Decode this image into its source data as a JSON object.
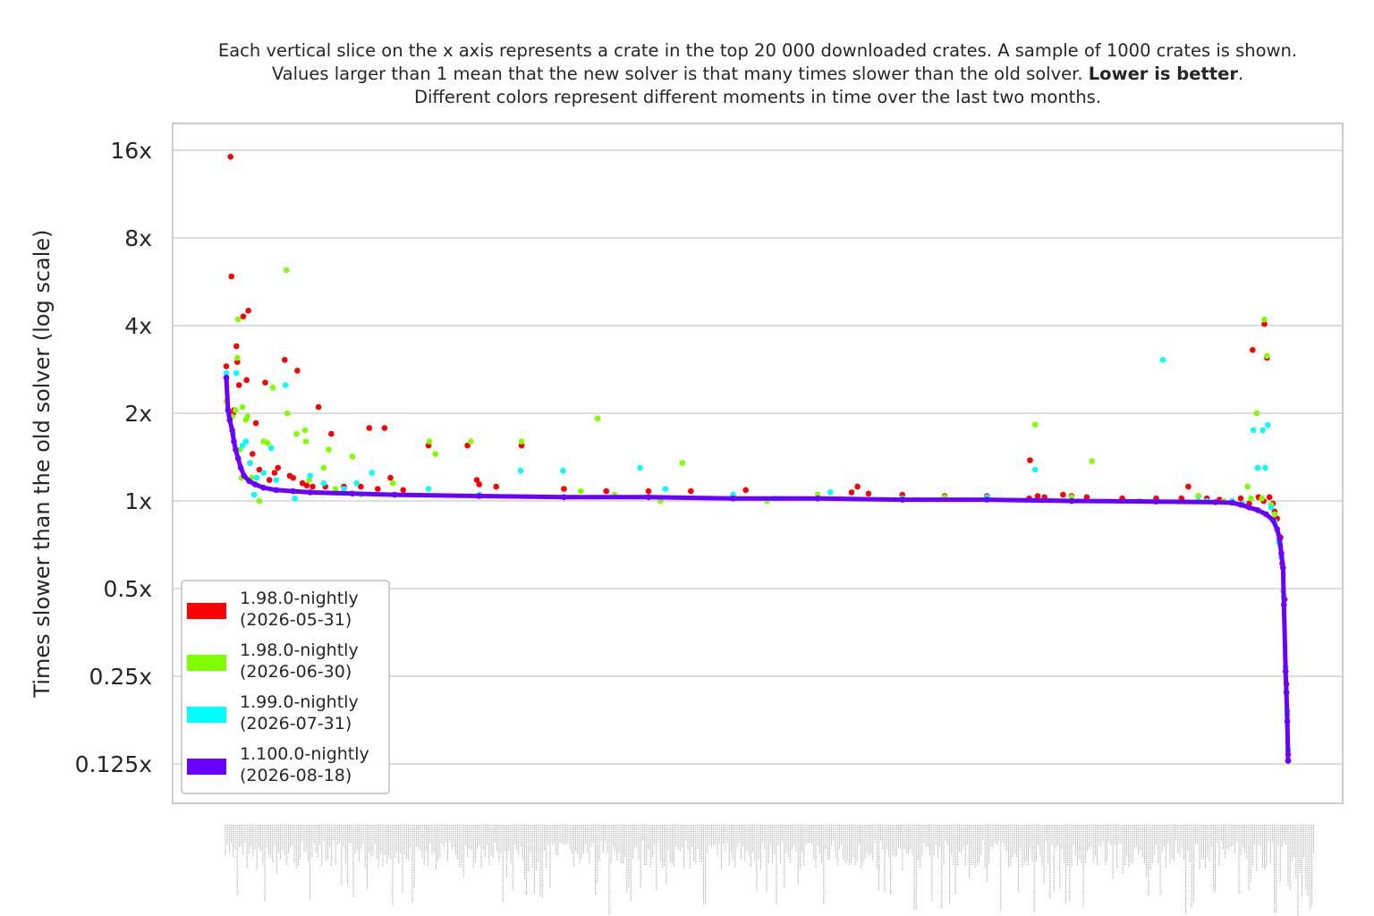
{
  "chart_data": {
    "type": "scatter",
    "subtitle_lines": [
      "Each vertical slice on the x axis represents a crate in the top 20 000 downloaded crates. A sample of 1000 crates is shown.",
      {
        "before": "Values larger than 1 mean that the new solver is that many times slower than the old solver. ",
        "bold": "Lower is better",
        "after": "."
      },
      "Different colors represent different moments in time over the last two months."
    ],
    "ylabel": "Times slower than the old solver (log scale)",
    "xlabel": "",
    "y_scale": "log2",
    "ylim": [
      0.105,
      19
    ],
    "y_ticks": [
      {
        "value": 16,
        "label": "16x"
      },
      {
        "value": 8,
        "label": "8x"
      },
      {
        "value": 4,
        "label": "4x"
      },
      {
        "value": 2,
        "label": "2x"
      },
      {
        "value": 1,
        "label": "1x"
      },
      {
        "value": 0.5,
        "label": "0.5x"
      },
      {
        "value": 0.25,
        "label": "0.25x"
      },
      {
        "value": 0.125,
        "label": "0.125x"
      }
    ],
    "grid": true,
    "legend_position": "lower-left",
    "x_tick_labels_note": "crate names, rotated and illegible",
    "x_count": 1000,
    "series": [
      {
        "name": "1.98.0-nightly\n(2026-05-31)",
        "color": "#ff0000",
        "points": [
          [
            1,
            2.9
          ],
          [
            6,
            15.2
          ],
          [
            7,
            5.9
          ],
          [
            9,
            2.0
          ],
          [
            10,
            2.05
          ],
          [
            13,
            3.4
          ],
          [
            14,
            3.0
          ],
          [
            16,
            2.5
          ],
          [
            21,
            4.3
          ],
          [
            25,
            2.6
          ],
          [
            27,
            4.5
          ],
          [
            29,
            1.35
          ],
          [
            32,
            1.45
          ],
          [
            36,
            1.85
          ],
          [
            40,
            1.28
          ],
          [
            47,
            2.55
          ],
          [
            52,
            1.18
          ],
          [
            58,
            1.25
          ],
          [
            62,
            1.3
          ],
          [
            70,
            3.05
          ],
          [
            76,
            1.22
          ],
          [
            80,
            1.2
          ],
          [
            85,
            2.8
          ],
          [
            91,
            1.15
          ],
          [
            96,
            1.13
          ],
          [
            103,
            1.12
          ],
          [
            110,
            2.1
          ],
          [
            118,
            1.12
          ],
          [
            125,
            1.7
          ],
          [
            140,
            1.12
          ],
          [
            160,
            1.12
          ],
          [
            170,
            1.78
          ],
          [
            180,
            1.1
          ],
          [
            188,
            1.78
          ],
          [
            195,
            1.2
          ],
          [
            210,
            1.09
          ],
          [
            240,
            1.55
          ],
          [
            286,
            1.55
          ],
          [
            297,
            1.18
          ],
          [
            300,
            1.14
          ],
          [
            320,
            1.12
          ],
          [
            350,
            1.55
          ],
          [
            400,
            1.1
          ],
          [
            450,
            1.08
          ],
          [
            500,
            1.08
          ],
          [
            550,
            1.08
          ],
          [
            615,
            1.09
          ],
          [
            740,
            1.07
          ],
          [
            747,
            1.12
          ],
          [
            760,
            1.06
          ],
          [
            800,
            1.05
          ],
          [
            850,
            1.04
          ],
          [
            900,
            1.04
          ],
          [
            950,
            1.02
          ],
          [
            951,
            1.38
          ],
          [
            960,
            1.04
          ],
          [
            968,
            1.03
          ],
          [
            990,
            1.05
          ],
          [
            1000,
            1.04
          ],
          [
            1018,
            1.03
          ],
          [
            1060,
            1.02
          ],
          [
            1100,
            1.02
          ],
          [
            1130,
            1.02
          ],
          [
            1138,
            1.12
          ],
          [
            1150,
            1.04
          ],
          [
            1160,
            1.02
          ],
          [
            1175,
            1.01
          ],
          [
            1190,
            1.0
          ],
          [
            1200,
            1.02
          ],
          [
            1210,
            0.98
          ],
          [
            1214,
            3.3
          ],
          [
            1221,
            1.03
          ],
          [
            1227,
            1.0
          ],
          [
            1228,
            4.05
          ],
          [
            1231,
            3.1
          ],
          [
            1234,
            1.03
          ],
          [
            1238,
            0.98
          ],
          [
            1240,
            0.92
          ],
          [
            1243,
            0.87
          ],
          [
            1247,
            0.75
          ],
          [
            1249,
            0.61
          ],
          [
            1252,
            0.46
          ],
          [
            1253,
            0.26
          ],
          [
            1254,
            0.235
          ],
          [
            1255,
            0.19
          ],
          [
            1256,
            0.135
          ]
        ]
      },
      {
        "name": "1.98.0-nightly\n(2026-06-30)",
        "color": "#7fff00",
        "points": [
          [
            1,
            2.2
          ],
          [
            8,
            1.95
          ],
          [
            12,
            2.05
          ],
          [
            14,
            3.1
          ],
          [
            15,
            4.2
          ],
          [
            17,
            1.5
          ],
          [
            19,
            1.2
          ],
          [
            20,
            2.1
          ],
          [
            24,
            1.9
          ],
          [
            26,
            1.95
          ],
          [
            31,
            1.2
          ],
          [
            40,
            1.0
          ],
          [
            45,
            1.6
          ],
          [
            50,
            1.58
          ],
          [
            56,
            2.45
          ],
          [
            72,
            6.2
          ],
          [
            73,
            2.0
          ],
          [
            84,
            1.7
          ],
          [
            94,
            1.75
          ],
          [
            95,
            1.6
          ],
          [
            99,
            1.18
          ],
          [
            116,
            1.3
          ],
          [
            122,
            1.5
          ],
          [
            130,
            1.1
          ],
          [
            150,
            1.42
          ],
          [
            160,
            1.05
          ],
          [
            198,
            1.15
          ],
          [
            241,
            1.6
          ],
          [
            248,
            1.45
          ],
          [
            290,
            1.6
          ],
          [
            350,
            1.6
          ],
          [
            420,
            1.08
          ],
          [
            440,
            1.92
          ],
          [
            460,
            1.05
          ],
          [
            500,
            1.03
          ],
          [
            514,
            1.0
          ],
          [
            540,
            1.35
          ],
          [
            600,
            1.04
          ],
          [
            640,
            1.0
          ],
          [
            700,
            1.05
          ],
          [
            800,
            1.02
          ],
          [
            850,
            1.03
          ],
          [
            900,
            1.02
          ],
          [
            957,
            1.83
          ],
          [
            1000,
            1.03
          ],
          [
            1024,
            1.37
          ],
          [
            1080,
            1.0
          ],
          [
            1150,
            1.04
          ],
          [
            1180,
            1.0
          ],
          [
            1208,
            1.12
          ],
          [
            1212,
            1.02
          ],
          [
            1219,
            2.0
          ],
          [
            1225,
            1.02
          ],
          [
            1228,
            4.2
          ],
          [
            1231,
            3.15
          ],
          [
            1236,
            0.97
          ],
          [
            1240,
            0.9
          ],
          [
            1247,
            0.7
          ],
          [
            1250,
            0.49
          ],
          [
            1253,
            0.27
          ],
          [
            1255,
            0.185
          ],
          [
            1256,
            0.138
          ]
        ]
      },
      {
        "name": "1.99.0-nightly\n(2026-07-31)",
        "color": "#00ffff",
        "points": [
          [
            1,
            2.75
          ],
          [
            9,
            1.7
          ],
          [
            13,
            2.75
          ],
          [
            20,
            1.55
          ],
          [
            24,
            1.6
          ],
          [
            29,
            1.35
          ],
          [
            34,
            1.05
          ],
          [
            37,
            1.2
          ],
          [
            45,
            1.25
          ],
          [
            54,
            1.52
          ],
          [
            60,
            1.18
          ],
          [
            71,
            2.5
          ],
          [
            82,
            1.02
          ],
          [
            100,
            1.22
          ],
          [
            116,
            1.15
          ],
          [
            140,
            1.1
          ],
          [
            155,
            1.15
          ],
          [
            173,
            1.25
          ],
          [
            200,
            1.05
          ],
          [
            240,
            1.1
          ],
          [
            300,
            1.05
          ],
          [
            349,
            1.27
          ],
          [
            399,
            1.27
          ],
          [
            490,
            1.3
          ],
          [
            520,
            1.1
          ],
          [
            600,
            1.05
          ],
          [
            650,
            1.02
          ],
          [
            715,
            1.07
          ],
          [
            800,
            1.02
          ],
          [
            900,
            1.03
          ],
          [
            957,
            1.28
          ],
          [
            1000,
            1.0
          ],
          [
            1108,
            3.05
          ],
          [
            1150,
            1.0
          ],
          [
            1160,
            1.0
          ],
          [
            1190,
            1.0
          ],
          [
            1202,
            0.98
          ],
          [
            1215,
            1.75
          ],
          [
            1220,
            1.3
          ],
          [
            1226,
            1.75
          ],
          [
            1229,
            1.3
          ],
          [
            1232,
            1.82
          ],
          [
            1236,
            0.95
          ],
          [
            1240,
            0.85
          ],
          [
            1245,
            0.72
          ],
          [
            1248,
            0.64
          ],
          [
            1251,
            0.47
          ],
          [
            1253,
            0.27
          ],
          [
            1255,
            0.19
          ],
          [
            1256,
            0.14
          ]
        ]
      },
      {
        "name": "1.100.0-nightly\n(2026-08-18)",
        "color": "#6a00ff",
        "points": [
          [
            1,
            2.65
          ],
          [
            3,
            2.05
          ],
          [
            5,
            1.9
          ],
          [
            8,
            1.75
          ],
          [
            10,
            1.6
          ],
          [
            12,
            1.5
          ],
          [
            15,
            1.4
          ],
          [
            18,
            1.3
          ],
          [
            22,
            1.22
          ],
          [
            28,
            1.17
          ],
          [
            35,
            1.14
          ],
          [
            45,
            1.11
          ],
          [
            60,
            1.09
          ],
          [
            80,
            1.08
          ],
          [
            100,
            1.07
          ],
          [
            150,
            1.06
          ],
          [
            200,
            1.05
          ],
          [
            300,
            1.04
          ],
          [
            400,
            1.03
          ],
          [
            500,
            1.03
          ],
          [
            600,
            1.02
          ],
          [
            700,
            1.02
          ],
          [
            800,
            1.01
          ],
          [
            900,
            1.01
          ],
          [
            1000,
            1.0
          ],
          [
            1100,
            0.995
          ],
          [
            1170,
            0.99
          ],
          [
            1190,
            0.985
          ],
          [
            1200,
            0.97
          ],
          [
            1210,
            0.95
          ],
          [
            1220,
            0.93
          ],
          [
            1230,
            0.9
          ],
          [
            1238,
            0.86
          ],
          [
            1243,
            0.8
          ],
          [
            1246,
            0.74
          ],
          [
            1248,
            0.66
          ],
          [
            1250,
            0.59
          ],
          [
            1251,
            0.44
          ],
          [
            1253,
            0.26
          ],
          [
            1254,
            0.22
          ],
          [
            1255,
            0.175
          ],
          [
            1256,
            0.128
          ]
        ]
      }
    ]
  }
}
